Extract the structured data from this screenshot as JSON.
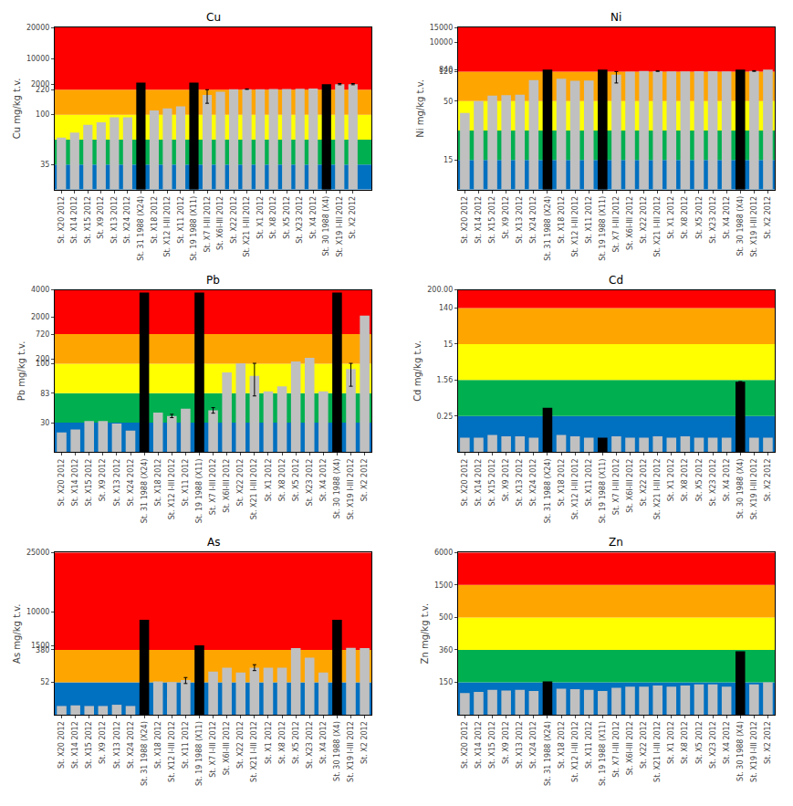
{
  "chart_data": [
    {
      "type": "bar",
      "title": "Cu",
      "y_label": "Cu mg/kg t.v.",
      "categories": [
        "St. X20 2012",
        "St. X14 2012",
        "St. X15 2012",
        "St. X9 2012",
        "St. X13 2012",
        "St. X24 2012",
        "St. 31 1988 (X24)",
        "St. X18 2012",
        "St. X12 I-III 2012",
        "St. X11 2012",
        "St. 19 1988 (X11)",
        "St. X7 I-III 2012",
        "St. X6I-III 2012",
        "St. X22 2012",
        "St. X21 I-III 2012",
        "St. X1 2012",
        "St. X8 2012",
        "St. X5 2012",
        "St. X23 2012",
        "St. X4 2012",
        "St. 30 1988 (X4)",
        "St. X19 I-III 2012",
        "St. X2 2012"
      ],
      "values": [
        55,
        65,
        80,
        85,
        95,
        95,
        2500,
        120,
        130,
        140,
        2500,
        195,
        210,
        380,
        420,
        420,
        440,
        460,
        500,
        590,
        2000,
        2000,
        2000
      ],
      "colors": [
        "#C0C0C0",
        "#C0C0C0",
        "#C0C0C0",
        "#C0C0C0",
        "#C0C0C0",
        "#C0C0C0",
        "#000000",
        "#C0C0C0",
        "#C0C0C0",
        "#C0C0C0",
        "#000000",
        "#C0C0C0",
        "#C0C0C0",
        "#C0C0C0",
        "#C0C0C0",
        "#C0C0C0",
        "#C0C0C0",
        "#C0C0C0",
        "#C0C0C0",
        "#C0C0C0",
        "#000000",
        "#C0C0C0",
        "#C0C0C0"
      ],
      "errors": [
        null,
        null,
        null,
        null,
        null,
        null,
        null,
        null,
        null,
        null,
        null,
        40,
        null,
        null,
        80,
        null,
        null,
        null,
        null,
        null,
        null,
        200,
        200
      ],
      "bands": [
        {
          "from": 0,
          "to": 35,
          "color": "#0070C0",
          "span": 1
        },
        {
          "from": 35,
          "to": 51,
          "color": "#00B050",
          "span": 1
        },
        {
          "from": 51,
          "to": 100,
          "color": "#FFFF00",
          "span": 1
        },
        {
          "from": 100,
          "to": 220,
          "color": "#FFA500",
          "span": 1
        },
        {
          "from": 220,
          "to": 20000,
          "color": "#FF0000",
          "span": 2.5
        }
      ],
      "ylim": [
        0,
        20000
      ],
      "yticks": [
        35,
        100,
        220,
        2000,
        10000,
        20000
      ],
      "grid": false
    },
    {
      "type": "bar",
      "title": "Ni",
      "y_label": "Ni mg/kg t.v.",
      "categories": [
        "St. X20 2012",
        "St. X14 2012",
        "St. X15 2012",
        "St. X9 2012",
        "St. X13 2012",
        "St. X24 2012",
        "St. 31 1988 (X24)",
        "St. X18 2012",
        "St. X12 I-III 2012",
        "St. X11 2012",
        "St. 19 1988 (X11)",
        "St. X7 I-III 2012",
        "St. X6I-III 2012",
        "St. X22 2012",
        "St. X21 I-III 2012",
        "St. X1 2012",
        "St. X8 2012",
        "St. X5 2012",
        "St. X23 2012",
        "St. X4 2012",
        "St. 30 1988 (X4)",
        "St. X19 I-III 2012",
        "St. X2 2012"
      ],
      "values": [
        42,
        50,
        63,
        64,
        65,
        100,
        800,
        103,
        98,
        99,
        800,
        113,
        125,
        310,
        280,
        145,
        148,
        280,
        260,
        210,
        800,
        300,
        800
      ],
      "colors": [
        "#C0C0C0",
        "#C0C0C0",
        "#C0C0C0",
        "#C0C0C0",
        "#C0C0C0",
        "#C0C0C0",
        "#000000",
        "#C0C0C0",
        "#C0C0C0",
        "#C0C0C0",
        "#000000",
        "#C0C0C0",
        "#C0C0C0",
        "#C0C0C0",
        "#C0C0C0",
        "#C0C0C0",
        "#C0C0C0",
        "#C0C0C0",
        "#C0C0C0",
        "#C0C0C0",
        "#000000",
        "#C0C0C0",
        "#C0C0C0"
      ],
      "errors": [
        null,
        null,
        null,
        null,
        null,
        null,
        null,
        null,
        null,
        null,
        null,
        20,
        null,
        null,
        60,
        null,
        null,
        null,
        null,
        null,
        null,
        80,
        null
      ],
      "bands": [
        {
          "from": 0,
          "to": 15,
          "color": "#0070C0",
          "span": 1
        },
        {
          "from": 15,
          "to": 30,
          "color": "#00B050",
          "span": 1
        },
        {
          "from": 30,
          "to": 50,
          "color": "#FFFF00",
          "span": 1
        },
        {
          "from": 50,
          "to": 120,
          "color": "#FFA500",
          "span": 1
        },
        {
          "from": 120,
          "to": 15000,
          "color": "#FF0000",
          "span": 1.5
        }
      ],
      "ylim": [
        0,
        15000
      ],
      "yticks": [
        15,
        50,
        120,
        840,
        10000,
        15000
      ],
      "grid": false
    },
    {
      "type": "bar",
      "title": "Pb",
      "y_label": "Pb mg/kg t.v.",
      "categories": [
        "St. X20 2012",
        "St. X14 2012",
        "St. X15 2012",
        "St. X9 2012",
        "St. X13 2012",
        "St. X24 2012",
        "St. 31 1988 (X24)",
        "St. X18 2012",
        "St. X12 I-III 2012",
        "St. X11 2012",
        "St. 19 1988 (X11)",
        "St. X7 I-III 2012",
        "St. X6I-III 2012",
        "St. X22 2012",
        "St. X21 I-III 2012",
        "St. X1 2012",
        "St. X8 2012",
        "St. X5 2012",
        "St. X23 2012",
        "St. X4 2012",
        "St. 30 1988 (X4)",
        "St. X19 I-III 2012",
        "St. X2 2012"
      ],
      "values": [
        20,
        23,
        33,
        33,
        29,
        22,
        3800,
        48,
        42,
        55,
        3800,
        52,
        95,
        110,
        93,
        84,
        87,
        145,
        225,
        84,
        3800,
        97,
        2100
      ],
      "colors": [
        "#C0C0C0",
        "#C0C0C0",
        "#C0C0C0",
        "#C0C0C0",
        "#C0C0C0",
        "#C0C0C0",
        "#000000",
        "#C0C0C0",
        "#C0C0C0",
        "#C0C0C0",
        "#000000",
        "#C0C0C0",
        "#C0C0C0",
        "#C0C0C0",
        "#C0C0C0",
        "#C0C0C0",
        "#C0C0C0",
        "#C0C0C0",
        "#C0C0C0",
        "#C0C0C0",
        "#000000",
        "#C0C0C0",
        "#C0C0C0"
      ],
      "errors": [
        null,
        null,
        null,
        null,
        null,
        null,
        null,
        null,
        3,
        null,
        null,
        5,
        null,
        null,
        15,
        null,
        null,
        null,
        null,
        null,
        null,
        10,
        null
      ],
      "bands": [
        {
          "from": 0,
          "to": 30,
          "color": "#0070C0",
          "span": 1
        },
        {
          "from": 30,
          "to": 83,
          "color": "#00B050",
          "span": 1
        },
        {
          "from": 83,
          "to": 100,
          "color": "#FFFF00",
          "span": 1
        },
        {
          "from": 100,
          "to": 720,
          "color": "#FFA500",
          "span": 1
        },
        {
          "from": 720,
          "to": 4000,
          "color": "#FF0000",
          "span": 1.5
        }
      ],
      "ylim": [
        0,
        4000
      ],
      "yticks": [
        30,
        83,
        100,
        200,
        720,
        2000,
        4000
      ],
      "grid": false
    },
    {
      "type": "bar",
      "title": "Cd",
      "y_label": "Cd mg/kg t.v.",
      "categories": [
        "St. X20 2012",
        "St. X14 2012",
        "St. X15 2012",
        "St. X9 2012",
        "St. X13 2012",
        "St. X24 2012",
        "St. 31 1988 (X24)",
        "St. X18 2012",
        "St. X12 I-III 2012",
        "St. X11 2012",
        "St. 19 1988 (X11)",
        "St. X7 I-III 2012",
        "St. X6I-III 2012",
        "St. X22 2012",
        "St. X21 I-III 2012",
        "St. X1 2012",
        "St. X8 2012",
        "St. X5 2012",
        "St. X23 2012",
        "St. X4 2012",
        "St. 30 1988 (X4)",
        "St. X19 I-III 2012",
        "St. X2 2012"
      ],
      "values": [
        0.1,
        0.1,
        0.12,
        0.11,
        0.11,
        0.1,
        0.55,
        0.12,
        0.11,
        0.1,
        0.1,
        0.11,
        0.1,
        0.1,
        0.11,
        0.1,
        0.11,
        0.1,
        0.1,
        0.1,
        1.5,
        0.1,
        0.1
      ],
      "colors": [
        "#C0C0C0",
        "#C0C0C0",
        "#C0C0C0",
        "#C0C0C0",
        "#C0C0C0",
        "#C0C0C0",
        "#000000",
        "#C0C0C0",
        "#C0C0C0",
        "#C0C0C0",
        "#000000",
        "#C0C0C0",
        "#C0C0C0",
        "#C0C0C0",
        "#C0C0C0",
        "#C0C0C0",
        "#C0C0C0",
        "#C0C0C0",
        "#C0C0C0",
        "#C0C0C0",
        "#000000",
        "#C0C0C0",
        "#C0C0C0"
      ],
      "errors": [
        null,
        null,
        null,
        null,
        null,
        null,
        null,
        null,
        null,
        null,
        null,
        null,
        null,
        null,
        null,
        null,
        null,
        null,
        null,
        null,
        0,
        null,
        null
      ],
      "bands": [
        {
          "from": 0,
          "to": 0.25,
          "color": "#0070C0",
          "span": 1
        },
        {
          "from": 0.25,
          "to": 1.56,
          "color": "#00B050",
          "span": 1
        },
        {
          "from": 1.56,
          "to": 15,
          "color": "#FFFF00",
          "span": 1
        },
        {
          "from": 15,
          "to": 140,
          "color": "#FFA500",
          "span": 1
        },
        {
          "from": 140,
          "to": 200,
          "color": "#FF0000",
          "span": 0.5
        }
      ],
      "ylim": [
        0,
        200
      ],
      "yticks": [
        0.25,
        1.56,
        15,
        140,
        {
          "value": 200,
          "label": "200.00"
        }
      ],
      "grid": false
    },
    {
      "type": "bar",
      "title": "As",
      "y_label": "As mg/kg t.v.",
      "categories": [
        "St. X20 2012",
        "St. X14 2012",
        "St. X15 2012",
        "St. X9 2012",
        "St. X13 2012",
        "St. X24 2012",
        "St. 31 1988 (X24)",
        "St. X18 2012",
        "St. X12 I-III 2012",
        "St. X11 2012",
        "St. 19 1988 (X11)",
        "St. X7 I-III 2012",
        "St. X6I-III 2012",
        "St. X22 2012",
        "St. X21 I-III 2012",
        "St. X1 2012",
        "St. X8 2012",
        "St. X5 2012",
        "St. X23 2012",
        "St. X4 2012",
        "St. 30 1988 (X4)",
        "St. X19 I-III 2012",
        "St. X2 2012"
      ],
      "values": [
        14,
        15,
        14,
        14,
        16,
        14,
        8000,
        60,
        55,
        75,
        1500,
        160,
        200,
        150,
        200,
        200,
        200,
        800,
        300,
        150,
        8000,
        900,
        800
      ],
      "colors": [
        "#C0C0C0",
        "#C0C0C0",
        "#C0C0C0",
        "#C0C0C0",
        "#C0C0C0",
        "#C0C0C0",
        "#000000",
        "#C0C0C0",
        "#C0C0C0",
        "#C0C0C0",
        "#000000",
        "#C0C0C0",
        "#C0C0C0",
        "#C0C0C0",
        "#C0C0C0",
        "#C0C0C0",
        "#C0C0C0",
        "#C0C0C0",
        "#C0C0C0",
        "#C0C0C0",
        "#000000",
        "#C0C0C0",
        "#C0C0C0"
      ],
      "errors": [
        null,
        null,
        null,
        null,
        null,
        null,
        null,
        null,
        null,
        25,
        null,
        null,
        null,
        null,
        30,
        null,
        null,
        null,
        null,
        null,
        null,
        null,
        null
      ],
      "bands": [
        {
          "from": 0,
          "to": 52,
          "color": "#0070C0",
          "span": 1
        },
        {
          "from": 52,
          "to": 380,
          "color": "#FFA500",
          "span": 1
        },
        {
          "from": 380,
          "to": 25000,
          "color": "#FF0000",
          "span": 3
        }
      ],
      "ylim": [
        0,
        25000
      ],
      "yticks": [
        52,
        380,
        1500,
        10000,
        25000
      ],
      "grid": false
    },
    {
      "type": "bar",
      "title": "Zn",
      "y_label": "Zn mg/kg t.v.",
      "categories": [
        "St. X20 2012",
        "St. X14 2012",
        "St. X15 2012",
        "St. X9 2012",
        "St. X13 2012",
        "St. X24 2012",
        "St. 31 1988 (X24)",
        "St. X18 2012",
        "St. X12 I-III 2012",
        "St. X11 2012",
        "St. 19 1988 (X11)",
        "St. X7 I-III 2012",
        "St. X6I-III 2012",
        "St. X22 2012",
        "St. X21 I-III 2012",
        "St. X1 2012",
        "St. X8 2012",
        "St. X5 2012",
        "St. X23 2012",
        "St. X4 2012",
        "St. 30 1988 (X4)",
        "St. X19 I-III 2012",
        "St. X2 2012"
      ],
      "values": [
        100,
        105,
        115,
        112,
        115,
        110,
        155,
        120,
        118,
        115,
        110,
        125,
        130,
        130,
        135,
        130,
        135,
        140,
        140,
        130,
        350,
        140,
        150
      ],
      "colors": [
        "#C0C0C0",
        "#C0C0C0",
        "#C0C0C0",
        "#C0C0C0",
        "#C0C0C0",
        "#C0C0C0",
        "#000000",
        "#C0C0C0",
        "#C0C0C0",
        "#C0C0C0",
        "#C0C0C0",
        "#C0C0C0",
        "#C0C0C0",
        "#C0C0C0",
        "#C0C0C0",
        "#C0C0C0",
        "#C0C0C0",
        "#C0C0C0",
        "#C0C0C0",
        "#C0C0C0",
        "#000000",
        "#C0C0C0",
        "#C0C0C0"
      ],
      "bands": [
        {
          "from": 0,
          "to": 150,
          "color": "#0070C0",
          "span": 1
        },
        {
          "from": 150,
          "to": 360,
          "color": "#00B050",
          "span": 1
        },
        {
          "from": 360,
          "to": 500,
          "color": "#FFFF00",
          "span": 1
        },
        {
          "from": 500,
          "to": 1500,
          "color": "#FFA500",
          "span": 1
        },
        {
          "from": 1500,
          "to": 6000,
          "color": "#FF0000",
          "span": 1
        }
      ],
      "ylim": [
        0,
        6000
      ],
      "yticks": [
        150,
        360,
        500,
        1500,
        6000
      ],
      "grid": false
    }
  ]
}
